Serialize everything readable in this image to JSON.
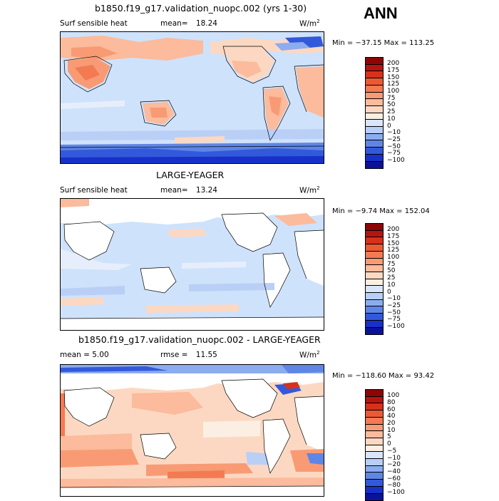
{
  "season": "ANN",
  "panels": [
    {
      "title": "b1850.f19_g17.validation_nuopc.002 (yrs 1-30)",
      "left_label": "Surf sensible heat",
      "stat_label": "mean=",
      "stat_value": "18.24",
      "units": "W/m",
      "units_exp": "2",
      "minmax": "Min = −37.15  Max = 113.25"
    },
    {
      "title": "LARGE-YEAGER",
      "left_label": "Surf sensible heat",
      "stat_label": "mean=",
      "stat_value": "13.24",
      "units": "W/m",
      "units_exp": "2",
      "minmax": "Min =  −9.74  Max = 152.04"
    },
    {
      "title": "b1850.f19_g17.validation_nuopc.002 - LARGE-YEAGER",
      "left_label": "mean =    5.00",
      "stat_label": "rmse =",
      "stat_value": "11.55",
      "units": "W/m",
      "units_exp": "2",
      "minmax": "Min = −118.60  Max =  93.42"
    }
  ],
  "chart_data": [
    {
      "type": "heatmap",
      "title": "b1850.f19_g17.validation_nuopc.002 (yrs 1-30)",
      "variable": "Surf sensible heat",
      "mean": 18.24,
      "min": -37.15,
      "max": 113.25,
      "units": "W/m2",
      "colorbar": {
        "levels": [
          "200",
          "175",
          "150",
          "125",
          "100",
          "75",
          "50",
          "25",
          "10",
          "0",
          "−10",
          "−25",
          "−50",
          "−75",
          "−100"
        ],
        "colors": [
          "#8c0606",
          "#b71410",
          "#d8301b",
          "#ec5a34",
          "#f47a52",
          "#f89b74",
          "#fbbb9c",
          "#fcd8c2",
          "#fbefe3",
          "#d8e6fb",
          "#b9cff6",
          "#8cacf0",
          "#5f86e7",
          "#3359db",
          "#1731c8",
          "#0a129c"
        ]
      }
    },
    {
      "type": "heatmap",
      "title": "LARGE-YEAGER",
      "variable": "Surf sensible heat",
      "mean": 13.24,
      "min": -9.74,
      "max": 152.04,
      "units": "W/m2",
      "colorbar": {
        "levels": [
          "200",
          "175",
          "150",
          "125",
          "100",
          "75",
          "50",
          "25",
          "10",
          "0",
          "−10",
          "−25",
          "−50",
          "−75",
          "−100"
        ],
        "colors": [
          "#8c0606",
          "#b71410",
          "#d8301b",
          "#ec5a34",
          "#f47a52",
          "#f89b74",
          "#fbbb9c",
          "#fcd8c2",
          "#fbefe3",
          "#d8e6fb",
          "#b9cff6",
          "#8cacf0",
          "#5f86e7",
          "#3359db",
          "#1731c8",
          "#0a129c"
        ]
      }
    },
    {
      "type": "heatmap",
      "title": "b1850.f19_g17.validation_nuopc.002 - LARGE-YEAGER",
      "mean": 5.0,
      "rmse": 11.55,
      "min": -118.6,
      "max": 93.42,
      "units": "W/m2",
      "colorbar": {
        "levels": [
          "100",
          "80",
          "60",
          "40",
          "20",
          "10",
          "5",
          "0",
          "−5",
          "−10",
          "−20",
          "−40",
          "−60",
          "−80",
          "−100"
        ],
        "colors": [
          "#8c0606",
          "#b71410",
          "#d8301b",
          "#ec5a34",
          "#f47a52",
          "#f89b74",
          "#fbbb9c",
          "#fcd8c2",
          "#fbefe3",
          "#d8e6fb",
          "#b9cff6",
          "#8cacf0",
          "#5f86e7",
          "#3359db",
          "#1731c8",
          "#0a129c"
        ]
      }
    }
  ]
}
